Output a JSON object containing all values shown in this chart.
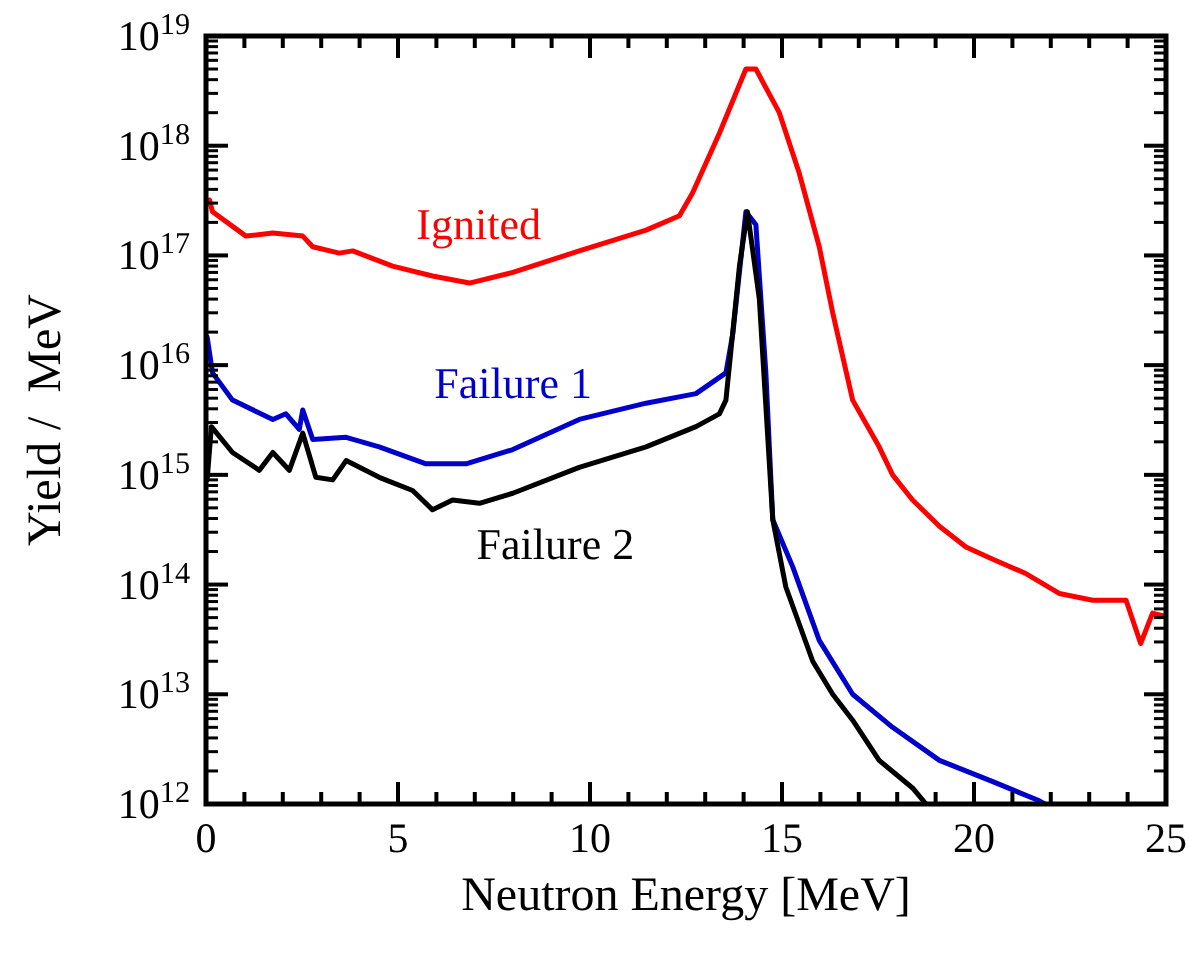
{
  "chart_data": {
    "type": "line",
    "xlabel": "Neutron Energy [MeV]",
    "ylabel": "Yield /  MeV",
    "log": "y",
    "xlim": [
      0,
      25
    ],
    "xticks": [
      0,
      5,
      10,
      15,
      20,
      25
    ],
    "ylim": [
      1000000000000.0,
      1e+19
    ],
    "yticks": [
      {
        "value": 1000000000000.0,
        "label": "10$^{12}$"
      },
      {
        "value": 10000000000000.0,
        "label": "10$^{13}$"
      },
      {
        "value": 100000000000000.0,
        "label": "10$^{14}$"
      },
      {
        "value": 1000000000000000.0,
        "label": "10$^{15}$"
      },
      {
        "value": 1e+16,
        "label": "10$^{16}$"
      },
      {
        "value": 1e+17,
        "label": "10$^{17}$"
      },
      {
        "value": 1e+18,
        "label": "10$^{18}$"
      },
      {
        "value": 1e+19,
        "label": "10$^{19}$"
      }
    ],
    "grid": false,
    "marker": "none",
    "line_style": "solid",
    "series": [
      {
        "name": "Ignited",
        "color": "#ff0000",
        "x": [
          0.09,
          0.17,
          1.04,
          1.74,
          2.52,
          2.78,
          3.47,
          3.82,
          4.86,
          5.9,
          6.86,
          7.99,
          9.72,
          11.46,
          12.33,
          12.67,
          13.37,
          14.06,
          14.32,
          14.93,
          15.45,
          15.97,
          16.32,
          16.84,
          17.53,
          17.88,
          18.4,
          19.1,
          19.79,
          20.49,
          21.35,
          22.22,
          23.09,
          23.96,
          24.34,
          24.65,
          25
        ],
        "values": [
          3.2e+17,
          2.5e+17,
          1.5e+17,
          1.6e+17,
          1.5e+17,
          1.2e+17,
          1.05e+17,
          1.1e+17,
          8e+16,
          6.5e+16,
          5.6e+16,
          7e+16,
          1.1e+17,
          1.7e+17,
          2.3e+17,
          3.7e+17,
          1.3e+18,
          5e+18,
          5e+18,
          2e+18,
          5.6e+17,
          1.2e+17,
          3e+16,
          4800000000000000.0,
          1800000000000000.0,
          1000000000000000.0,
          590000000000000.0,
          340000000000000.0,
          220000000000000.0,
          170000000000000.0,
          126000000000000.0,
          83000000000000.0,
          72000000000000.0,
          72000000000000.0,
          29000000000000.0,
          55000000000000.0,
          51000000000000.0
        ]
      },
      {
        "name": "Failure 1",
        "color": "#0000cc",
        "x": [
          0.03,
          0.17,
          0.69,
          1.74,
          2.08,
          2.43,
          2.52,
          2.78,
          3.65,
          4.51,
          5.73,
          6.77,
          7.99,
          9.72,
          11.46,
          12.76,
          13.54,
          13.72,
          14.06,
          14.32,
          14.58,
          14.76,
          15.28,
          15.97,
          16.84,
          17.88,
          19.1,
          20.49,
          21.7,
          21.84
        ],
        "values": [
          1.8e+16,
          8500000000000000.0,
          4800000000000000.0,
          3200000000000000.0,
          3600000000000000.0,
          2600000000000000.0,
          3900000000000000.0,
          2100000000000000.0,
          2200000000000000.0,
          1800000000000000.0,
          1260000000000000.0,
          1260000000000000.0,
          1700000000000000.0,
          3200000000000000.0,
          4500000000000000.0,
          5500000000000000.0,
          8500000000000000.0,
          1.95e+16,
          2.5e+17,
          1.9e+17,
          8500000000000000.0,
          390000000000000.0,
          145000000000000.0,
          31000000000000.0,
          10000000000000.0,
          5000000000000.0,
          2500000000000.0,
          1600000000000.0,
          1070000000000.0,
          1000000000000.0
        ]
      },
      {
        "name": "Failure 2",
        "color": "#000000",
        "x": [
          0.03,
          0.14,
          0.69,
          1.39,
          1.74,
          2.17,
          2.52,
          2.86,
          3.3,
          3.65,
          4.51,
          5.38,
          5.9,
          6.42,
          7.12,
          7.99,
          9.72,
          11.46,
          12.76,
          13.37,
          13.54,
          13.89,
          14.1,
          14.41,
          14.76,
          15.1,
          15.8,
          16.32,
          16.84,
          17.53,
          18.4,
          18.75
        ],
        "values": [
          900000000000000.0,
          2750000000000000.0,
          1600000000000000.0,
          1100000000000000.0,
          1600000000000000.0,
          1100000000000000.0,
          2400000000000000.0,
          950000000000000.0,
          900000000000000.0,
          1350000000000000.0,
          950000000000000.0,
          720000000000000.0,
          480000000000000.0,
          590000000000000.0,
          550000000000000.0,
          680000000000000.0,
          1170000000000000.0,
          1800000000000000.0,
          2750000000000000.0,
          3600000000000000.0,
          4800000000000000.0,
          7.9e+16,
          2.5e+17,
          4e+16,
          390000000000000.0,
          95000000000000.0,
          20000000000000.0,
          10000000000000.0,
          5800000000000.0,
          2500000000000.0,
          1400000000000.0,
          1000000000000.0
        ]
      }
    ]
  }
}
